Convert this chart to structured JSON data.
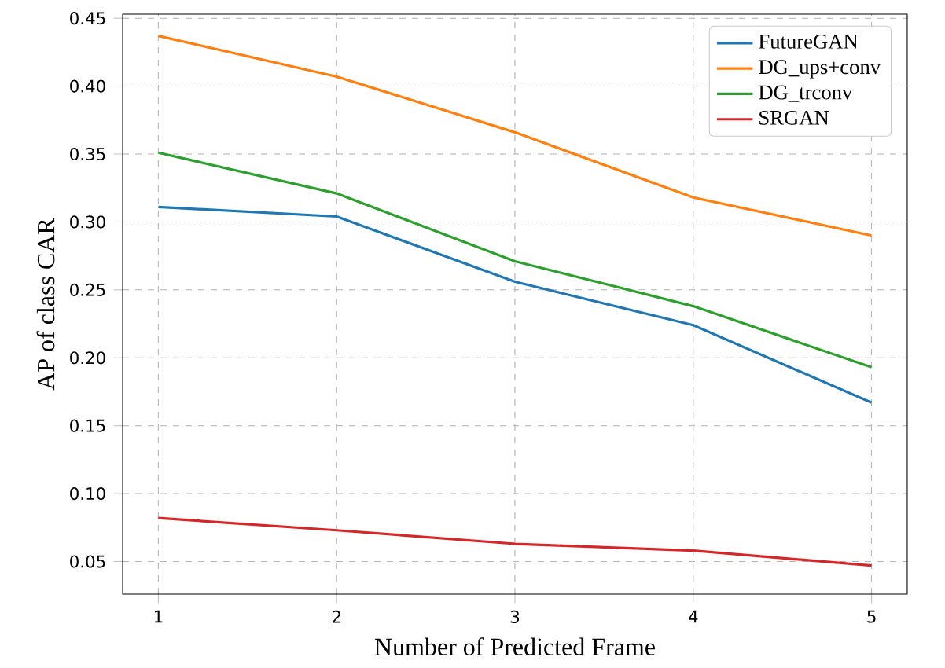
{
  "chart_data": {
    "type": "line",
    "xlabel": "Number of Predicted Frame",
    "ylabel": "AP of class CAR",
    "x": [
      1,
      2,
      3,
      4,
      5
    ],
    "series": [
      {
        "name": "FutureGAN",
        "color": "#1f77b4",
        "values": [
          0.311,
          0.304,
          0.256,
          0.224,
          0.167
        ]
      },
      {
        "name": "DG_ups+conv",
        "color": "#ff7f0e",
        "values": [
          0.437,
          0.407,
          0.366,
          0.318,
          0.29
        ]
      },
      {
        "name": "DG_trconv",
        "color": "#2ca02c",
        "values": [
          0.351,
          0.321,
          0.271,
          0.238,
          0.193
        ]
      },
      {
        "name": "SRGAN",
        "color": "#d62728",
        "values": [
          0.082,
          0.073,
          0.063,
          0.058,
          0.047
        ]
      }
    ],
    "xlim": [
      0.8,
      5.2
    ],
    "ylim": [
      0.026,
      0.453
    ],
    "xticks": [
      1,
      2,
      3,
      4,
      5
    ],
    "yticks": [
      0.05,
      {
        "value": 0.1,
        "label": "0.10"
      },
      0.15,
      {
        "value": 0.2,
        "label": "0.20"
      },
      0.25,
      {
        "value": 0.3,
        "label": "0.30"
      },
      0.35,
      {
        "value": 0.4,
        "label": "0.40"
      },
      0.45
    ],
    "grid": true,
    "legend": "top right",
    "marker": "none",
    "line_style": "solid"
  }
}
